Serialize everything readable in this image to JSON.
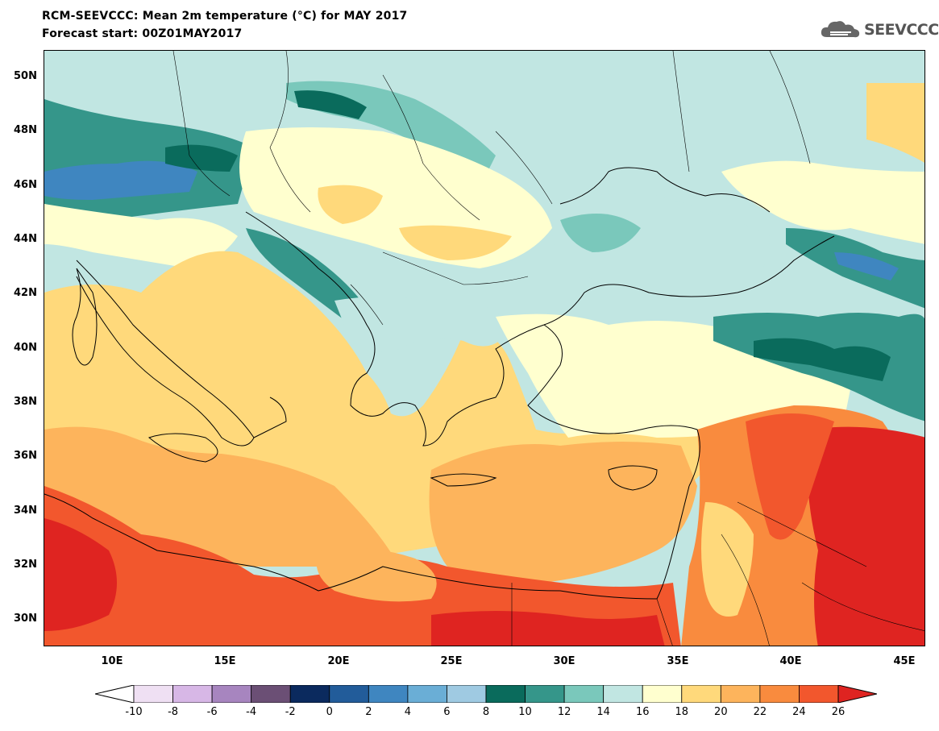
{
  "title": {
    "line1": "RCM-SEEVCCC: Mean 2m temperature (°C) for MAY 2017",
    "line2": "Forecast start: 00Z01MAY2017"
  },
  "logo": {
    "text": "SEEVCCC",
    "icon": "cloud-icon",
    "color": "#555555"
  },
  "map": {
    "variable": "Mean 2m temperature",
    "units": "°C",
    "lon_range": [
      7,
      46
    ],
    "lat_range": [
      29,
      51
    ],
    "lat_ticks": [
      "50N",
      "48N",
      "46N",
      "44N",
      "42N",
      "40N",
      "38N",
      "36N",
      "34N",
      "32N",
      "30N"
    ],
    "lon_ticks": [
      "10E",
      "15E",
      "20E",
      "25E",
      "30E",
      "35E",
      "40E",
      "45E"
    ]
  },
  "colorbar": {
    "labels": [
      "-10",
      "-8",
      "-6",
      "-4",
      "-2",
      "0",
      "2",
      "4",
      "6",
      "8",
      "10",
      "12",
      "14",
      "16",
      "18",
      "20",
      "22",
      "24",
      "26"
    ],
    "colors": [
      "#ffffff",
      "#efe0f3",
      "#d7b7e6",
      "#a785bf",
      "#6b4f75",
      "#0b2a5e",
      "#225c9a",
      "#3f86c0",
      "#6aaed6",
      "#9fcae2",
      "#0a6b5c",
      "#35968a",
      "#7ac8bb",
      "#c1e6e2",
      "#ffffcf",
      "#ffd97b",
      "#fdb45c",
      "#f98b3e",
      "#f2572d",
      "#df2421"
    ]
  }
}
